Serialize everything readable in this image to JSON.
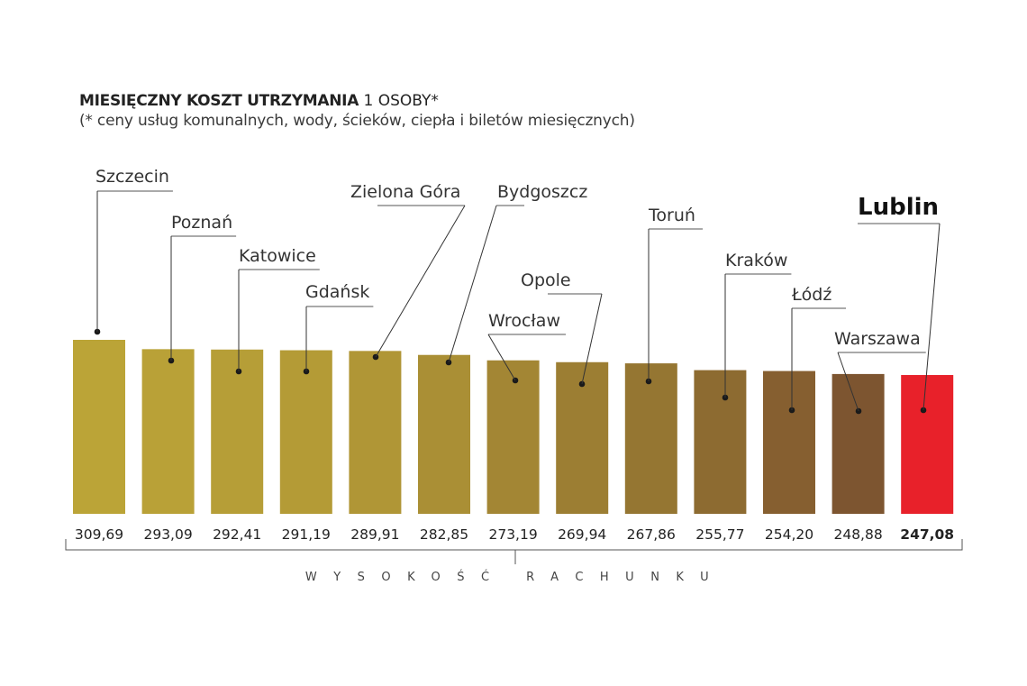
{
  "title": {
    "bold": "MIESIĘCZNY KOSZT UTRZYMANIA",
    "rest": "1 OSOBY*",
    "subtitle": "(* ceny usług komunalnych, wody, ścieków, ciepła i biletów miesięcznych)"
  },
  "chart_data": {
    "type": "bar",
    "categories": [
      "Szczecin",
      "Poznań",
      "Katowice",
      "Gdańsk",
      "Zielona Góra",
      "Bydgoszcz",
      "Wrocław",
      "Opole",
      "Toruń",
      "Kraków",
      "Łódź",
      "Warszawa",
      "Lublin"
    ],
    "values": [
      309.69,
      293.09,
      292.41,
      291.19,
      289.91,
      282.85,
      273.19,
      269.94,
      267.86,
      255.77,
      254.2,
      248.88,
      247.08
    ],
    "value_labels": [
      "309,69",
      "293,09",
      "292,41",
      "291,19",
      "289,91",
      "282,85",
      "273,19",
      "269,94",
      "267,86",
      "255,77",
      "254,20",
      "248,88",
      "247,08"
    ],
    "highlight": "Lublin",
    "xlabel": "WYSOKOŚĆ RACHUNKU",
    "colors": [
      "#bba437",
      "#b9a137",
      "#b69e37",
      "#b49b36",
      "#b09636",
      "#aa8f35",
      "#a38634",
      "#9c7e33",
      "#957632",
      "#8d6b31",
      "#865f30",
      "#7d5530",
      "#e8212a"
    ]
  }
}
